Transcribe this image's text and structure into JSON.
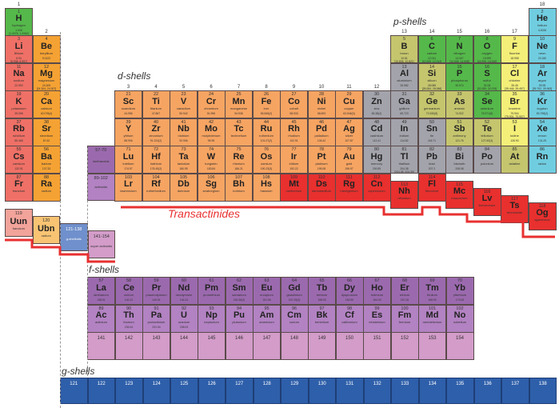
{
  "labels": {
    "d_shells": "d-shells",
    "p_shells": "p-shells",
    "f_shells": "f-shells",
    "g_shells": "g-shells",
    "transactinides": "Transactinides"
  },
  "groups": [
    "1",
    "2",
    "3",
    "4",
    "5",
    "6",
    "7",
    "8",
    "9",
    "10",
    "11",
    "12",
    "13",
    "14",
    "15",
    "16",
    "17",
    "18"
  ],
  "colors": {
    "nonmetal": "#55b84a",
    "alkali": "#ef7066",
    "alkaline": "#f5a234",
    "d": "#f6a462",
    "post": "#a3a3ab",
    "metalloid": "#c5c56e",
    "halogen": "#f3ef78",
    "noble": "#70cde0",
    "trans": "#e8302e",
    "lan": "#9b6aae",
    "act": "#b282c2",
    "super": "#d39cc9",
    "g": "#2e5faa",
    "uun": "#f2a39a",
    "ubn": "#f8c473",
    "gbox": "#6f90cc"
  },
  "elements": [
    [
      "1",
      "H",
      "hydrogen",
      "1.008\n[1.0078, 1.0082]",
      1,
      1,
      "nonmetal"
    ],
    [
      "2",
      "He",
      "helium",
      "4.0026",
      18,
      1,
      "noble"
    ],
    [
      "3",
      "Li",
      "lithium",
      "6.94\n[6.938, 6.997]",
      1,
      2,
      "alkali"
    ],
    [
      "4",
      "Be",
      "beryllium",
      "9.0122",
      2,
      2,
      "alkaline"
    ],
    [
      "5",
      "B",
      "boron",
      "10.81\n[10.806, 10.821]",
      13,
      2,
      "metalloid"
    ],
    [
      "6",
      "C",
      "carbon",
      "12.011\n[12.009, 12.012]",
      14,
      2,
      "nonmetal"
    ],
    [
      "7",
      "N",
      "nitrogen",
      "14.007\n[14.006, 14.008]",
      15,
      2,
      "nonmetal"
    ],
    [
      "8",
      "O",
      "oxygen",
      "15.999\n[15.999, 16.000]",
      16,
      2,
      "nonmetal"
    ],
    [
      "9",
      "F",
      "fluorine",
      "18.998",
      17,
      2,
      "halogen"
    ],
    [
      "10",
      "Ne",
      "neon",
      "20.180",
      18,
      2,
      "noble"
    ],
    [
      "11",
      "Na",
      "sodium",
      "22.990",
      1,
      3,
      "alkali"
    ],
    [
      "12",
      "Mg",
      "magnesium",
      "24.305\n[24.304, 24.307]",
      2,
      3,
      "alkaline"
    ],
    [
      "13",
      "Al",
      "aluminium",
      "26.982",
      13,
      3,
      "post"
    ],
    [
      "14",
      "Si",
      "silicon",
      "28.085\n[28.084, 28.086]",
      14,
      3,
      "metalloid"
    ],
    [
      "15",
      "P",
      "phosphorus",
      "30.974",
      15,
      3,
      "nonmetal"
    ],
    [
      "16",
      "S",
      "sulfur",
      "32.06\n[32.059, 32.076]",
      16,
      3,
      "nonmetal"
    ],
    [
      "17",
      "Cl",
      "chlorine",
      "35.45\n[35.446, 35.457]",
      17,
      3,
      "halogen"
    ],
    [
      "18",
      "Ar",
      "argon",
      "39.95\n[39.792, 39.963]",
      18,
      3,
      "noble"
    ],
    [
      "19",
      "K",
      "potassium",
      "39.098",
      1,
      4,
      "alkali"
    ],
    [
      "20",
      "Ca",
      "calcium",
      "40.078(4)",
      2,
      4,
      "alkaline"
    ],
    [
      "21",
      "Sc",
      "scandium",
      "44.956",
      3,
      4,
      "d"
    ],
    [
      "22",
      "Ti",
      "titanium",
      "47.867",
      4,
      4,
      "d"
    ],
    [
      "23",
      "V",
      "vanadium",
      "50.942",
      5,
      4,
      "d"
    ],
    [
      "24",
      "Cr",
      "chromium",
      "51.996",
      6,
      4,
      "d"
    ],
    [
      "25",
      "Mn",
      "manganese",
      "54.938",
      7,
      4,
      "d"
    ],
    [
      "26",
      "Fe",
      "iron",
      "55.845(2)",
      8,
      4,
      "d"
    ],
    [
      "27",
      "Co",
      "cobalt",
      "58.933",
      9,
      4,
      "d"
    ],
    [
      "28",
      "Ni",
      "nickel",
      "58.693",
      10,
      4,
      "d"
    ],
    [
      "29",
      "Cu",
      "copper",
      "63.546(3)",
      11,
      4,
      "d"
    ],
    [
      "30",
      "Zn",
      "zinc",
      "65.38(2)",
      12,
      4,
      "post"
    ],
    [
      "31",
      "Ga",
      "gallium",
      "69.723",
      13,
      4,
      "post"
    ],
    [
      "32",
      "Ge",
      "germanium",
      "72.630(8)",
      14,
      4,
      "metalloid"
    ],
    [
      "33",
      "As",
      "arsenic",
      "74.922",
      15,
      4,
      "metalloid"
    ],
    [
      "34",
      "Se",
      "selenium",
      "78.971(8)",
      16,
      4,
      "nonmetal"
    ],
    [
      "35",
      "Br",
      "bromine",
      "79.904\n[79.901, 79.907]",
      17,
      4,
      "halogen"
    ],
    [
      "36",
      "Kr",
      "krypton",
      "83.798(2)",
      18,
      4,
      "noble"
    ],
    [
      "37",
      "Rb",
      "rubidium",
      "85.468",
      1,
      5,
      "alkali"
    ],
    [
      "38",
      "Sr",
      "strontium",
      "87.62",
      2,
      5,
      "alkaline"
    ],
    [
      "39",
      "Y",
      "yttrium",
      "88.906",
      3,
      5,
      "d"
    ],
    [
      "40",
      "Zr",
      "zirconium",
      "91.224(2)",
      4,
      5,
      "d"
    ],
    [
      "41",
      "Nb",
      "niobium",
      "92.906",
      5,
      5,
      "d"
    ],
    [
      "42",
      "Mo",
      "molybdenum",
      "95.95",
      6,
      5,
      "d"
    ],
    [
      "43",
      "Tc",
      "technetium",
      "",
      7,
      5,
      "d"
    ],
    [
      "44",
      "Ru",
      "ruthenium",
      "101.07(2)",
      8,
      5,
      "d"
    ],
    [
      "45",
      "Rh",
      "rhodium",
      "102.91",
      9,
      5,
      "d"
    ],
    [
      "46",
      "Pd",
      "palladium",
      "106.42",
      10,
      5,
      "d"
    ],
    [
      "47",
      "Ag",
      "silver",
      "107.87",
      11,
      5,
      "d"
    ],
    [
      "48",
      "Cd",
      "cadmium",
      "112.41",
      12,
      5,
      "post"
    ],
    [
      "49",
      "In",
      "indium",
      "114.82",
      13,
      5,
      "post"
    ],
    [
      "50",
      "Sn",
      "tin",
      "118.71",
      14,
      5,
      "post"
    ],
    [
      "51",
      "Sb",
      "antimony",
      "121.76",
      15,
      5,
      "metalloid"
    ],
    [
      "52",
      "Te",
      "tellurium",
      "127.60(3)",
      16,
      5,
      "metalloid"
    ],
    [
      "53",
      "I",
      "iodine",
      "126.90",
      17,
      5,
      "halogen"
    ],
    [
      "54",
      "Xe",
      "xenon",
      "131.29",
      18,
      5,
      "noble"
    ],
    [
      "55",
      "Cs",
      "caesium",
      "132.91",
      1,
      6,
      "alkali"
    ],
    [
      "56",
      "Ba",
      "barium",
      "137.33",
      2,
      6,
      "alkaline"
    ],
    [
      "71",
      "Lu",
      "lutetium",
      "174.97",
      3,
      6,
      "d"
    ],
    [
      "72",
      "Hf",
      "hafnium",
      "178.49(2)",
      4,
      6,
      "d"
    ],
    [
      "73",
      "Ta",
      "tantalum",
      "180.95",
      5,
      6,
      "d"
    ],
    [
      "74",
      "W",
      "tungsten",
      "183.84",
      6,
      6,
      "d"
    ],
    [
      "75",
      "Re",
      "rhenium",
      "186.21",
      7,
      6,
      "d"
    ],
    [
      "76",
      "Os",
      "osmium",
      "190.23(3)",
      8,
      6,
      "d"
    ],
    [
      "77",
      "Ir",
      "iridium",
      "192.22",
      9,
      6,
      "d"
    ],
    [
      "78",
      "Pt",
      "platinum",
      "195.08",
      10,
      6,
      "d"
    ],
    [
      "79",
      "Au",
      "gold",
      "196.97",
      11,
      6,
      "d"
    ],
    [
      "80",
      "Hg",
      "mercury",
      "200.59",
      12,
      6,
      "post"
    ],
    [
      "81",
      "Tl",
      "thallium",
      "204.38\n[204.38, 204.39]",
      13,
      6,
      "post"
    ],
    [
      "82",
      "Pb",
      "lead",
      "207.2",
      14,
      6,
      "post"
    ],
    [
      "83",
      "Bi",
      "bismuth",
      "208.98",
      15,
      6,
      "post"
    ],
    [
      "84",
      "Po",
      "polonium",
      "",
      16,
      6,
      "post"
    ],
    [
      "85",
      "At",
      "astatine",
      "",
      17,
      6,
      "metalloid"
    ],
    [
      "86",
      "Rn",
      "radon",
      "",
      18,
      6,
      "noble"
    ],
    [
      "87",
      "Fr",
      "francium",
      "",
      1,
      7,
      "alkali"
    ],
    [
      "88",
      "Ra",
      "radium",
      "",
      2,
      7,
      "alkaline"
    ],
    [
      "103",
      "Lr",
      "lawrencium",
      "",
      3,
      7,
      "d"
    ],
    [
      "104",
      "Rf",
      "rutherfordium",
      "",
      4,
      7,
      "d"
    ],
    [
      "105",
      "Db",
      "dubnium",
      "",
      5,
      7,
      "d"
    ],
    [
      "106",
      "Sg",
      "seaborgium",
      "",
      6,
      7,
      "d"
    ],
    [
      "107",
      "Bh",
      "bohrium",
      "",
      7,
      7,
      "d"
    ],
    [
      "108",
      "Hs",
      "hassium",
      "",
      8,
      7,
      "d"
    ],
    [
      "109",
      "Mt",
      "meitnerium",
      "",
      9,
      7,
      "trans"
    ],
    [
      "110",
      "Ds",
      "darmstadtium",
      "",
      10,
      7,
      "trans"
    ],
    [
      "111",
      "Rg",
      "roentgenium",
      "",
      11,
      7,
      "trans"
    ],
    [
      "112",
      "Cn",
      "copernicium",
      "",
      12,
      7,
      "trans"
    ],
    [
      "113",
      "Nh",
      "nihonium",
      "",
      13,
      7,
      "trans"
    ],
    [
      "114",
      "Fl",
      "flerovium",
      "",
      14,
      7,
      "trans"
    ],
    [
      "115",
      "Mc",
      "moscovium",
      "",
      15,
      7,
      "trans"
    ],
    [
      "116",
      "Lv",
      "livermorium",
      "",
      16,
      7,
      "trans"
    ],
    [
      "117",
      "Ts",
      "tennessine",
      "",
      17,
      7,
      "trans"
    ],
    [
      "118",
      "Og",
      "oganesson",
      "",
      18,
      7,
      "trans"
    ]
  ],
  "placeholders": {
    "lanthanoids": {
      "range": "57-70",
      "label": "lanthanoids"
    },
    "actinoids": {
      "range": "89-102",
      "label": "actinoids"
    },
    "uun": {
      "num": "119",
      "sym": "Uun",
      "name": "francium"
    },
    "ubn": {
      "num": "120",
      "sym": "Ubn",
      "name": "radium"
    },
    "g_box": {
      "range": "121-138",
      "label": "g-shelloids"
    },
    "super": {
      "range": "141-154",
      "label": "super actinoids"
    }
  },
  "f_shells": {
    "lanthanides": [
      [
        "57",
        "La",
        "lanthanum",
        "138.91"
      ],
      [
        "58",
        "Ce",
        "cerium",
        "140.12"
      ],
      [
        "59",
        "Pr",
        "praseodymium",
        "140.91"
      ],
      [
        "60",
        "Nd",
        "neodymium",
        "144.24"
      ],
      [
        "61",
        "Pm",
        "promethium",
        ""
      ],
      [
        "62",
        "Sm",
        "samarium",
        "150.36(2)"
      ],
      [
        "63",
        "Eu",
        "europium",
        "151.96"
      ],
      [
        "64",
        "Gd",
        "gadolinium",
        "157.25(3)"
      ],
      [
        "65",
        "Tb",
        "terbium",
        "158.93"
      ],
      [
        "66",
        "Dy",
        "dysprosium",
        "162.50"
      ],
      [
        "67",
        "Ho",
        "holmium",
        "164.93"
      ],
      [
        "68",
        "Er",
        "erbium",
        "167.26"
      ],
      [
        "69",
        "Tm",
        "thulium",
        "168.93"
      ],
      [
        "70",
        "Yb",
        "ytterbium",
        "173.05"
      ]
    ],
    "actinides": [
      [
        "89",
        "Ac",
        "actinium",
        ""
      ],
      [
        "90",
        "Th",
        "thorium",
        "232.04"
      ],
      [
        "91",
        "Pa",
        "protactinium",
        "231.04"
      ],
      [
        "92",
        "U",
        "uranium",
        "238.03"
      ],
      [
        "93",
        "Np",
        "neptunium",
        ""
      ],
      [
        "94",
        "Pu",
        "plutonium",
        ""
      ],
      [
        "95",
        "Am",
        "americium",
        ""
      ],
      [
        "96",
        "Cm",
        "curium",
        ""
      ],
      [
        "97",
        "Bk",
        "berkelium",
        ""
      ],
      [
        "98",
        "Cf",
        "californium",
        ""
      ],
      [
        "99",
        "Es",
        "einsteinium",
        ""
      ],
      [
        "100",
        "Fm",
        "fermium",
        ""
      ],
      [
        "101",
        "Md",
        "mendelevium",
        ""
      ],
      [
        "102",
        "No",
        "nobelium",
        ""
      ]
    ],
    "super_actinides": [
      "141",
      "142",
      "143",
      "144",
      "145",
      "146",
      "147",
      "148",
      "149",
      "150",
      "151",
      "152",
      "153",
      "154"
    ]
  },
  "g_shells": [
    "121",
    "122",
    "123",
    "124",
    "125",
    "126",
    "127",
    "128",
    "129",
    "130",
    "131",
    "132",
    "133",
    "134",
    "135",
    "136",
    "137",
    "138"
  ]
}
